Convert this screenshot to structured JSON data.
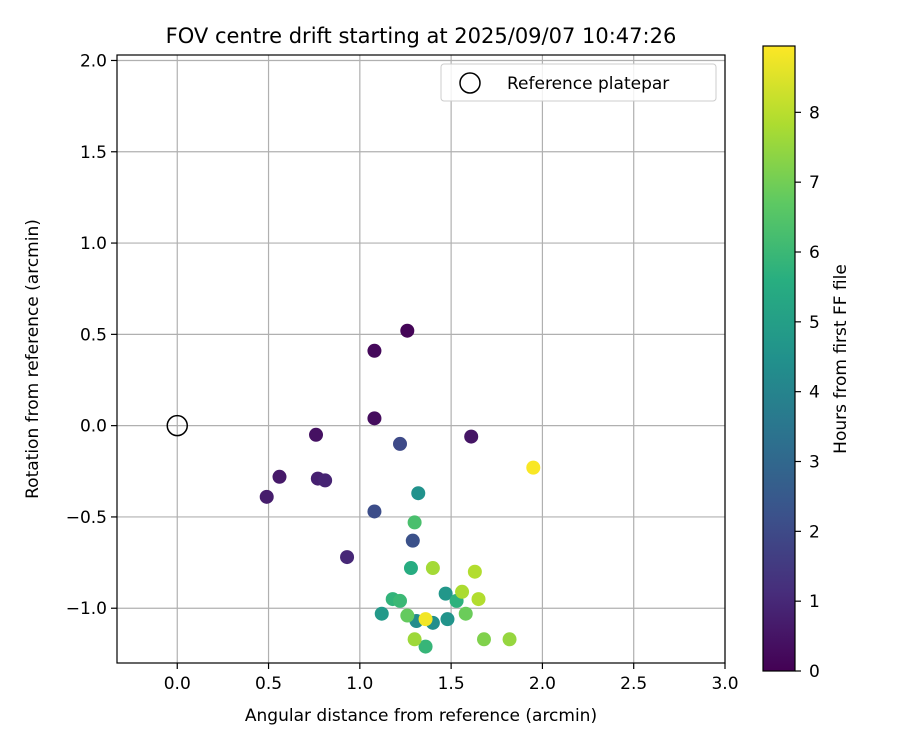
{
  "chart_data": {
    "type": "scatter",
    "title": "FOV centre drift starting at 2025/09/07 10:47:26",
    "xlabel": "Angular distance from reference (arcmin)",
    "ylabel": "Rotation from reference (arcmin)",
    "xlim": [
      -0.33,
      3.0
    ],
    "ylim": [
      -1.3,
      2.03
    ],
    "x_ticks": [
      "0.0",
      "0.5",
      "1.0",
      "1.5",
      "2.0",
      "2.5",
      "3.0"
    ],
    "y_ticks": [
      "−1.0",
      "−0.5",
      "0.0",
      "0.5",
      "1.0",
      "1.5",
      "2.0"
    ],
    "grid": true,
    "legend": {
      "placement": "upper right",
      "entries": [
        "Reference platepar"
      ]
    },
    "reference_point": {
      "x": 0.0,
      "y": 0.0
    },
    "colorbar": {
      "label": "Hours from first FF file",
      "colormap": "viridis",
      "range": [
        0,
        8.95
      ],
      "ticks": [
        "0",
        "1",
        "2",
        "3",
        "4",
        "5",
        "6",
        "7",
        "8"
      ]
    },
    "points": [
      {
        "x": 1.26,
        "y": 0.52,
        "hours": 0.1
      },
      {
        "x": 1.08,
        "y": 0.41,
        "hours": 0.2
      },
      {
        "x": 1.08,
        "y": 0.04,
        "hours": 0.3
      },
      {
        "x": 0.76,
        "y": -0.05,
        "hours": 0.4
      },
      {
        "x": 1.61,
        "y": -0.06,
        "hours": 0.5
      },
      {
        "x": 0.56,
        "y": -0.28,
        "hours": 0.6
      },
      {
        "x": 0.49,
        "y": -0.39,
        "hours": 0.7
      },
      {
        "x": 0.77,
        "y": -0.29,
        "hours": 0.8
      },
      {
        "x": 0.81,
        "y": -0.3,
        "hours": 0.9
      },
      {
        "x": 0.93,
        "y": -0.72,
        "hours": 1.0
      },
      {
        "x": 1.22,
        "y": -0.1,
        "hours": 2.0
      },
      {
        "x": 1.08,
        "y": -0.47,
        "hours": 2.1
      },
      {
        "x": 1.29,
        "y": -0.63,
        "hours": 2.2
      },
      {
        "x": 1.32,
        "y": -0.37,
        "hours": 4.5
      },
      {
        "x": 1.47,
        "y": -0.92,
        "hours": 4.7
      },
      {
        "x": 1.12,
        "y": -1.03,
        "hours": 4.8
      },
      {
        "x": 1.31,
        "y": -1.07,
        "hours": 4.3
      },
      {
        "x": 1.4,
        "y": -1.08,
        "hours": 4.4
      },
      {
        "x": 1.48,
        "y": -1.06,
        "hours": 4.6
      },
      {
        "x": 1.28,
        "y": -0.78,
        "hours": 5.5
      },
      {
        "x": 1.18,
        "y": -0.95,
        "hours": 5.8
      },
      {
        "x": 1.22,
        "y": -0.96,
        "hours": 6.0
      },
      {
        "x": 1.36,
        "y": -1.21,
        "hours": 5.9
      },
      {
        "x": 1.53,
        "y": -0.96,
        "hours": 5.7
      },
      {
        "x": 1.3,
        "y": -0.53,
        "hours": 6.3
      },
      {
        "x": 1.26,
        "y": -1.04,
        "hours": 6.8
      },
      {
        "x": 1.58,
        "y": -1.03,
        "hours": 6.9
      },
      {
        "x": 1.68,
        "y": -1.17,
        "hours": 7.2
      },
      {
        "x": 1.82,
        "y": -1.17,
        "hours": 7.5
      },
      {
        "x": 1.3,
        "y": -1.17,
        "hours": 7.6
      },
      {
        "x": 1.4,
        "y": -0.78,
        "hours": 7.7
      },
      {
        "x": 1.56,
        "y": -0.91,
        "hours": 7.8
      },
      {
        "x": 1.63,
        "y": -0.8,
        "hours": 7.9
      },
      {
        "x": 1.65,
        "y": -0.95,
        "hours": 7.9
      },
      {
        "x": 1.36,
        "y": -1.06,
        "hours": 8.8
      },
      {
        "x": 1.95,
        "y": -0.23,
        "hours": 8.9
      }
    ]
  }
}
